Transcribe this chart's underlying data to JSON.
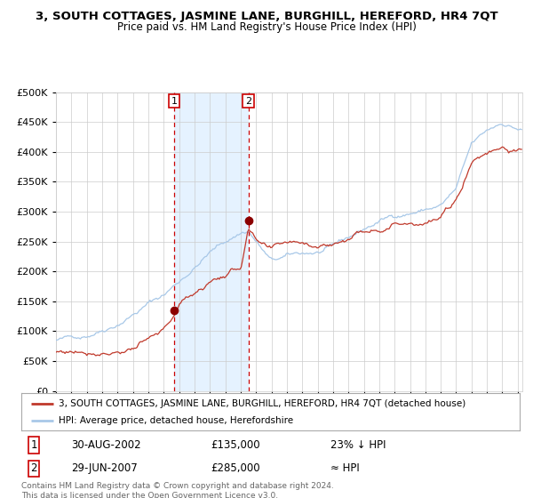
{
  "title": "3, SOUTH COTTAGES, JASMINE LANE, BURGHILL, HEREFORD, HR4 7QT",
  "subtitle": "Price paid vs. HM Land Registry's House Price Index (HPI)",
  "legend_line1": "3, SOUTH COTTAGES, JASMINE LANE, BURGHILL, HEREFORD, HR4 7QT (detached house)",
  "legend_line2": "HPI: Average price, detached house, Herefordshire",
  "transaction1_date": "30-AUG-2002",
  "transaction1_price": 135000,
  "transaction1_note": "23% ↓ HPI",
  "transaction2_date": "29-JUN-2007",
  "transaction2_price": 285000,
  "transaction2_note": "≈ HPI",
  "footer": "Contains HM Land Registry data © Crown copyright and database right 2024.\nThis data is licensed under the Open Government Licence v3.0.",
  "hpi_color": "#a8c8e8",
  "price_color": "#c0392b",
  "vline_color": "#cc0000",
  "shade_color": "#ddeeff",
  "dot_color": "#8b0000",
  "bg_color": "#ffffff",
  "grid_color": "#cccccc",
  "ylim": [
    0,
    500000
  ],
  "yticks": [
    0,
    50000,
    100000,
    150000,
    200000,
    250000,
    300000,
    350000,
    400000,
    450000,
    500000
  ],
  "x_start_year": 1995,
  "x_end_year": 2025,
  "transaction1_year": 2002.67,
  "transaction2_year": 2007.5
}
